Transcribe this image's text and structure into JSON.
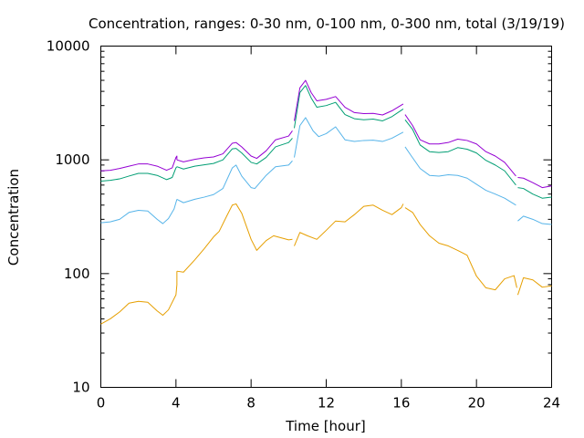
{
  "chart_data": {
    "type": "line",
    "title": "Concentration, ranges: 0-30 nm, 0-100 nm, 0-300 nm, total (3/19/19)",
    "xlabel": "Time [hour]",
    "ylabel": "Concentration",
    "xlim": [
      0,
      24
    ],
    "ylim": [
      10,
      10000
    ],
    "yscale": "log",
    "grid": false,
    "legend": "none",
    "x_ticks": [
      "0",
      "4",
      "8",
      "12",
      "16",
      "20",
      "24"
    ],
    "y_ticks": [
      "10",
      "100",
      "1000",
      "10000"
    ],
    "segments": [
      [
        0,
        4.05
      ],
      [
        4.05,
        10.25
      ],
      [
        10.25,
        16.15
      ],
      [
        16.15,
        22.15
      ],
      [
        22.15,
        24
      ]
    ],
    "series": [
      {
        "color": "#e69f00",
        "points": [
          [
            0,
            36
          ],
          [
            0.5,
            40
          ],
          [
            1,
            46
          ],
          [
            1.5,
            55
          ],
          [
            2,
            57
          ],
          [
            2.5,
            56
          ],
          [
            3,
            47
          ],
          [
            3.3,
            43
          ],
          [
            3.6,
            48
          ],
          [
            4,
            65
          ],
          [
            4.05,
            80
          ],
          [
            4.05,
            105
          ],
          [
            4.4,
            103
          ],
          [
            5,
            132
          ],
          [
            5.5,
            165
          ],
          [
            6,
            210
          ],
          [
            6.3,
            235
          ],
          [
            6.7,
            320
          ],
          [
            7,
            400
          ],
          [
            7.2,
            410
          ],
          [
            7.5,
            340
          ],
          [
            8,
            200
          ],
          [
            8.3,
            160
          ],
          [
            8.8,
            195
          ],
          [
            9.2,
            215
          ],
          [
            10,
            198
          ],
          [
            10.2,
            200
          ],
          [
            10.3,
            175
          ],
          [
            10.6,
            230
          ],
          [
            11,
            215
          ],
          [
            11.5,
            200
          ],
          [
            12,
            240
          ],
          [
            12.5,
            290
          ],
          [
            13,
            285
          ],
          [
            13.5,
            330
          ],
          [
            14,
            390
          ],
          [
            14.5,
            400
          ],
          [
            15,
            360
          ],
          [
            15.5,
            330
          ],
          [
            16,
            380
          ],
          [
            16.1,
            410
          ],
          [
            16.2,
            380
          ],
          [
            16.6,
            345
          ],
          [
            17,
            270
          ],
          [
            17.5,
            215
          ],
          [
            18,
            185
          ],
          [
            18.5,
            175
          ],
          [
            19,
            160
          ],
          [
            19.5,
            145
          ],
          [
            20,
            95
          ],
          [
            20.5,
            75
          ],
          [
            21,
            72
          ],
          [
            21.5,
            90
          ],
          [
            22,
            96
          ],
          [
            22.15,
            75
          ],
          [
            22.2,
            65
          ],
          [
            22.5,
            92
          ],
          [
            23,
            88
          ],
          [
            23.5,
            76
          ],
          [
            24,
            78
          ]
        ]
      },
      {
        "color": "#56b4e9",
        "points": [
          [
            0,
            280
          ],
          [
            0.5,
            285
          ],
          [
            1,
            300
          ],
          [
            1.5,
            345
          ],
          [
            2,
            360
          ],
          [
            2.5,
            355
          ],
          [
            3,
            300
          ],
          [
            3.3,
            275
          ],
          [
            3.6,
            305
          ],
          [
            3.9,
            370
          ],
          [
            4.05,
            450
          ],
          [
            4.05,
            450
          ],
          [
            4.4,
            420
          ],
          [
            5,
            450
          ],
          [
            5.5,
            470
          ],
          [
            6,
            495
          ],
          [
            6.5,
            560
          ],
          [
            7,
            850
          ],
          [
            7.2,
            900
          ],
          [
            7.5,
            720
          ],
          [
            8,
            570
          ],
          [
            8.2,
            560
          ],
          [
            8.8,
            730
          ],
          [
            9.3,
            870
          ],
          [
            10,
            900
          ],
          [
            10.2,
            980
          ],
          [
            10.3,
            1050
          ],
          [
            10.6,
            2000
          ],
          [
            10.9,
            2350
          ],
          [
            11.3,
            1800
          ],
          [
            11.6,
            1600
          ],
          [
            12,
            1700
          ],
          [
            12.5,
            1950
          ],
          [
            13,
            1500
          ],
          [
            13.5,
            1450
          ],
          [
            14,
            1480
          ],
          [
            14.5,
            1490
          ],
          [
            15,
            1450
          ],
          [
            15.5,
            1550
          ],
          [
            16.1,
            1750
          ],
          [
            16.2,
            1300
          ],
          [
            16.5,
            1100
          ],
          [
            17,
            840
          ],
          [
            17.5,
            730
          ],
          [
            18,
            720
          ],
          [
            18.5,
            740
          ],
          [
            19,
            730
          ],
          [
            19.5,
            690
          ],
          [
            20,
            610
          ],
          [
            20.5,
            540
          ],
          [
            21,
            500
          ],
          [
            21.5,
            460
          ],
          [
            22.1,
            400
          ],
          [
            22.2,
            290
          ],
          [
            22.5,
            320
          ],
          [
            23,
            300
          ],
          [
            23.5,
            275
          ],
          [
            24,
            270
          ]
        ]
      },
      {
        "color": "#009e73",
        "points": [
          [
            0,
            650
          ],
          [
            0.5,
            660
          ],
          [
            1,
            680
          ],
          [
            1.5,
            720
          ],
          [
            2,
            760
          ],
          [
            2.5,
            760
          ],
          [
            3,
            730
          ],
          [
            3.5,
            670
          ],
          [
            3.8,
            700
          ],
          [
            4,
            850
          ],
          [
            4.05,
            870
          ],
          [
            4.05,
            870
          ],
          [
            4.4,
            830
          ],
          [
            5,
            880
          ],
          [
            5.5,
            905
          ],
          [
            6,
            930
          ],
          [
            6.5,
            1000
          ],
          [
            7,
            1250
          ],
          [
            7.2,
            1260
          ],
          [
            7.5,
            1150
          ],
          [
            8,
            950
          ],
          [
            8.3,
            920
          ],
          [
            8.8,
            1050
          ],
          [
            9.3,
            1300
          ],
          [
            10,
            1420
          ],
          [
            10.2,
            1550
          ],
          [
            10.3,
            1900
          ],
          [
            10.6,
            3900
          ],
          [
            10.9,
            4500
          ],
          [
            11.2,
            3500
          ],
          [
            11.5,
            2900
          ],
          [
            12,
            3000
          ],
          [
            12.5,
            3200
          ],
          [
            13,
            2500
          ],
          [
            13.5,
            2300
          ],
          [
            14,
            2250
          ],
          [
            14.5,
            2280
          ],
          [
            15,
            2200
          ],
          [
            15.5,
            2400
          ],
          [
            16.1,
            2800
          ],
          [
            16.2,
            2250
          ],
          [
            16.6,
            1850
          ],
          [
            17,
            1350
          ],
          [
            17.5,
            1180
          ],
          [
            18,
            1160
          ],
          [
            18.5,
            1180
          ],
          [
            19,
            1280
          ],
          [
            19.5,
            1240
          ],
          [
            20,
            1150
          ],
          [
            20.5,
            990
          ],
          [
            21,
            900
          ],
          [
            21.5,
            800
          ],
          [
            22.1,
            600
          ],
          [
            22.2,
            570
          ],
          [
            22.5,
            560
          ],
          [
            23,
            500
          ],
          [
            23.5,
            460
          ],
          [
            24,
            470
          ]
        ]
      },
      {
        "color": "#9400d3",
        "points": [
          [
            0,
            800
          ],
          [
            0.5,
            810
          ],
          [
            1,
            840
          ],
          [
            1.5,
            880
          ],
          [
            2,
            920
          ],
          [
            2.5,
            920
          ],
          [
            3,
            880
          ],
          [
            3.5,
            810
          ],
          [
            3.8,
            850
          ],
          [
            4,
            1050
          ],
          [
            4.05,
            1080
          ],
          [
            4.05,
            1000
          ],
          [
            4.4,
            960
          ],
          [
            5,
            1010
          ],
          [
            5.5,
            1040
          ],
          [
            6,
            1060
          ],
          [
            6.5,
            1130
          ],
          [
            7,
            1400
          ],
          [
            7.2,
            1420
          ],
          [
            7.5,
            1300
          ],
          [
            8,
            1080
          ],
          [
            8.3,
            1030
          ],
          [
            8.8,
            1200
          ],
          [
            9.3,
            1500
          ],
          [
            10,
            1620
          ],
          [
            10.2,
            1800
          ],
          [
            10.3,
            2200
          ],
          [
            10.6,
            4300
          ],
          [
            10.9,
            5000
          ],
          [
            11.2,
            3900
          ],
          [
            11.5,
            3300
          ],
          [
            12,
            3400
          ],
          [
            12.5,
            3600
          ],
          [
            13,
            2900
          ],
          [
            13.5,
            2600
          ],
          [
            14,
            2550
          ],
          [
            14.5,
            2560
          ],
          [
            15,
            2480
          ],
          [
            15.5,
            2700
          ],
          [
            16.1,
            3100
          ],
          [
            16.2,
            2500
          ],
          [
            16.6,
            2000
          ],
          [
            17,
            1500
          ],
          [
            17.5,
            1380
          ],
          [
            18,
            1380
          ],
          [
            18.5,
            1420
          ],
          [
            19,
            1520
          ],
          [
            19.5,
            1480
          ],
          [
            20,
            1380
          ],
          [
            20.5,
            1180
          ],
          [
            21,
            1080
          ],
          [
            21.5,
            950
          ],
          [
            22.1,
            720
          ],
          [
            22.2,
            700
          ],
          [
            22.5,
            690
          ],
          [
            23,
            630
          ],
          [
            23.5,
            570
          ],
          [
            24,
            590
          ]
        ]
      }
    ]
  }
}
